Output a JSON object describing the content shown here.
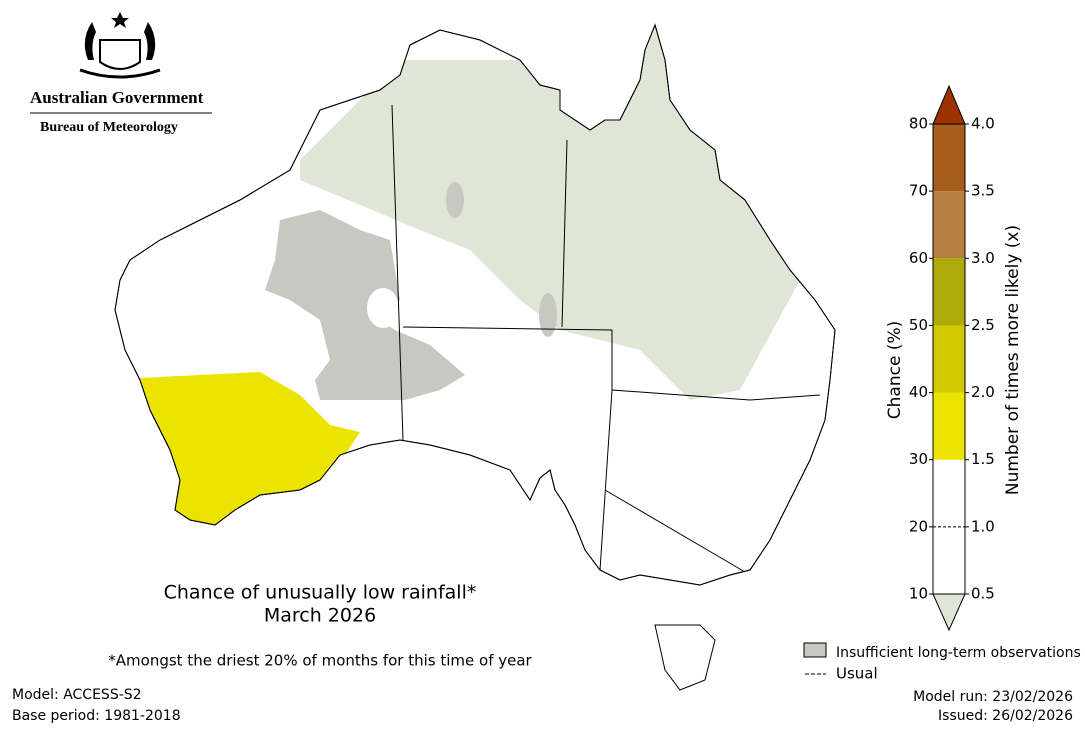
{
  "logo": {
    "line1": "Australian Government",
    "line2": "Bureau of Meteorology"
  },
  "title": {
    "line1": "Chance of unusually low rainfall*",
    "line2": "March 2026"
  },
  "footnote": "*Amongst the driest 20% of months for this time of year",
  "model": "Model: ACCESS-S2",
  "base_period": "Base period: 1981-2018",
  "model_run": "Model run: 23/02/2026",
  "issued": "Issued: 26/02/2026",
  "legend": {
    "insufficient": "Insufficient long-term observations",
    "usual": "Usual"
  },
  "colorbar": {
    "left_axis_label": "Chance (%)",
    "right_axis_label": "Number of times more likely (x)",
    "left_ticks": [
      10,
      20,
      30,
      40,
      50,
      60,
      70,
      80
    ],
    "right_ticks": [
      "0.5",
      "1.0",
      "1.5",
      "2.0",
      "2.5",
      "3.0",
      "3.5",
      "4.0"
    ],
    "segment_colors": [
      "#ffffff",
      "#ffffff",
      "#ebe300",
      "#d2c800",
      "#aeab08",
      "#b87d40",
      "#a65d1c"
    ],
    "under_color": "#dfe6d6",
    "over_color": "#9b3200"
  }
}
